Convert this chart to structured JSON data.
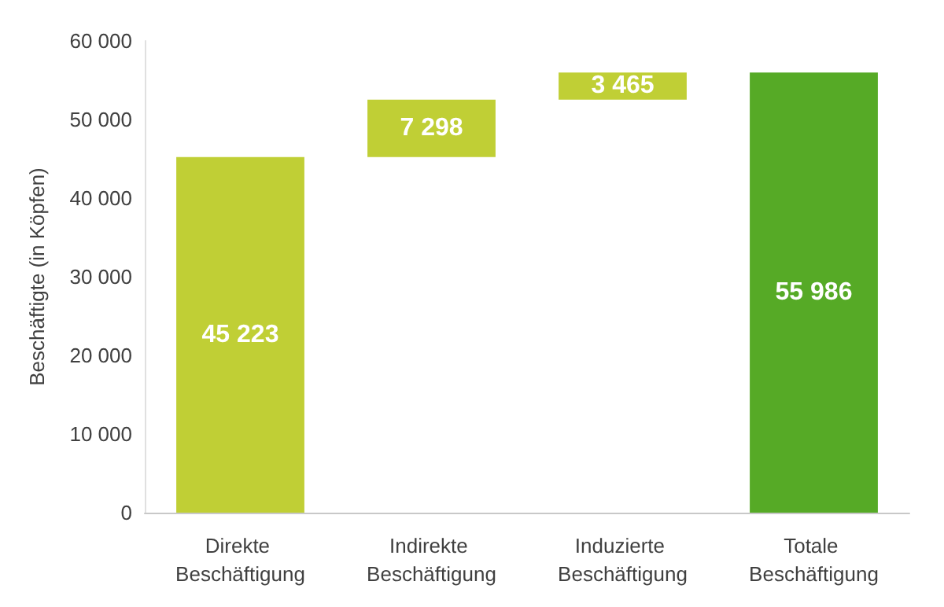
{
  "chart_data": {
    "type": "bar",
    "ylabel": "Beschäftigte (in Köpfen)",
    "categories": [
      "Direkte Beschäftigung",
      "Indirekte Beschäftigung",
      "Induzierte Beschäftigung",
      "Totale Beschäftigung"
    ],
    "values": [
      45223,
      7298,
      3465,
      55986
    ],
    "base": [
      0,
      45223,
      52521,
      0
    ],
    "colors": [
      "#c0cf35",
      "#c0cf35",
      "#c0cf35",
      "#56aa26"
    ],
    "value_labels": [
      "45 223",
      "7 298",
      "3 465",
      "55 986"
    ],
    "ylim": [
      0,
      60000
    ],
    "yticks": [
      {
        "value": 0,
        "label": "0"
      },
      {
        "value": 10000,
        "label": "10 000"
      },
      {
        "value": 20000,
        "label": "20 000"
      },
      {
        "value": 30000,
        "label": "30 000"
      },
      {
        "value": 40000,
        "label": "40 000"
      },
      {
        "value": 50000,
        "label": "50 000"
      },
      {
        "value": 60000,
        "label": "60 000"
      }
    ],
    "grid": false
  }
}
